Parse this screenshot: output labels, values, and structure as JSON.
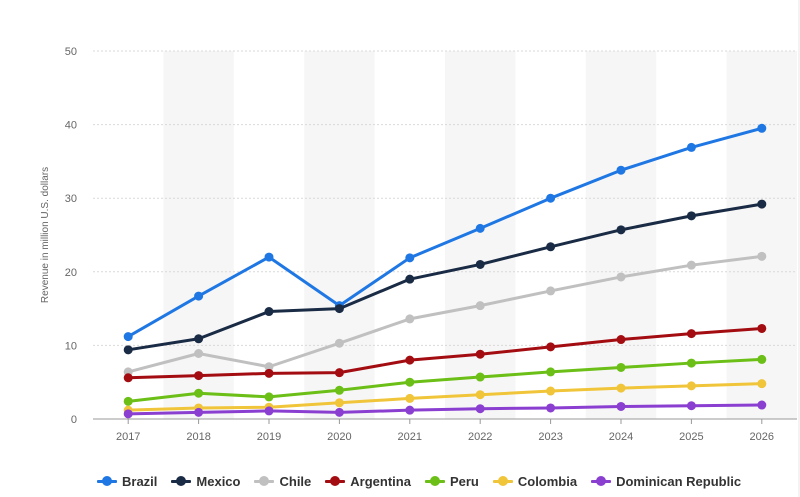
{
  "chart_data": {
    "type": "line",
    "title": "",
    "xlabel": "",
    "ylabel": "Revenue in million U.S. dollars",
    "categories": [
      "2017",
      "2018",
      "2019",
      "2020",
      "2021",
      "2022",
      "2023",
      "2024",
      "2025",
      "2026"
    ],
    "ylim": [
      0,
      50
    ],
    "yticks": [
      0,
      10,
      20,
      30,
      40,
      50
    ],
    "grid": true,
    "legend_position": "bottom",
    "series": [
      {
        "name": "Brazil",
        "color": "#1f77e4",
        "values": [
          11.2,
          16.7,
          22.0,
          15.4,
          21.9,
          25.9,
          30.0,
          33.8,
          36.9,
          39.5
        ]
      },
      {
        "name": "Mexico",
        "color": "#1a2b45",
        "values": [
          9.4,
          10.9,
          14.6,
          15.0,
          19.0,
          21.0,
          23.4,
          25.7,
          27.6,
          29.2
        ]
      },
      {
        "name": "Chile",
        "color": "#c0c0c0",
        "values": [
          6.4,
          8.9,
          7.1,
          10.3,
          13.6,
          15.4,
          17.4,
          19.3,
          20.9,
          22.1
        ]
      },
      {
        "name": "Argentina",
        "color": "#a30d12",
        "values": [
          5.6,
          5.9,
          6.2,
          6.3,
          8.0,
          8.8,
          9.8,
          10.8,
          11.6,
          12.3
        ]
      },
      {
        "name": "Peru",
        "color": "#6bbf16",
        "values": [
          2.4,
          3.5,
          3.0,
          3.9,
          5.0,
          5.7,
          6.4,
          7.0,
          7.6,
          8.1
        ]
      },
      {
        "name": "Colombia",
        "color": "#f0c53a",
        "values": [
          1.2,
          1.5,
          1.6,
          2.2,
          2.8,
          3.3,
          3.8,
          4.2,
          4.5,
          4.8
        ]
      },
      {
        "name": "Dominican Republic",
        "color": "#8a3fd1",
        "values": [
          0.7,
          0.9,
          1.1,
          0.9,
          1.2,
          1.4,
          1.5,
          1.7,
          1.8,
          1.9
        ]
      }
    ]
  }
}
